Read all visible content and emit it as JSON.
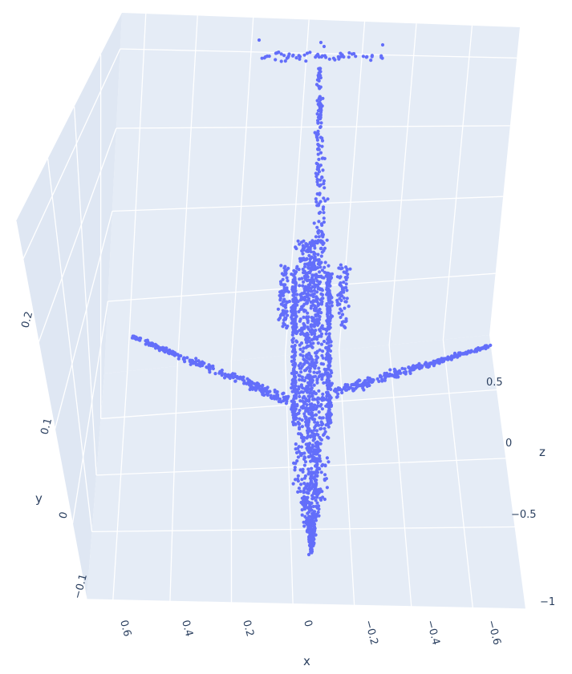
{
  "chart_data": {
    "type": "scatter",
    "mode": "3d",
    "description_shape": "point cloud of an airplane",
    "colors": {
      "background": "#e5ecf6",
      "grid": "#ffffff",
      "marker": "#636efa",
      "text": "#2a3f5f"
    },
    "axes": {
      "x": {
        "title": "x",
        "ticks": [
          "0.6",
          "0.4",
          "0.2",
          "0",
          "−0.2",
          "−0.4",
          "−0.6"
        ],
        "range": [
          0.7,
          -0.7
        ]
      },
      "y": {
        "title": "y",
        "ticks": [
          "−0.1",
          "0",
          "0.1",
          "0.2"
        ],
        "range": [
          -0.12,
          0.3
        ]
      },
      "z": {
        "title": "z",
        "ticks": [
          "−1",
          "−0.5",
          "0",
          "0.5"
        ],
        "range": [
          -1,
          0.8
        ]
      }
    },
    "series": [
      {
        "marker_color": "#636efa",
        "marker_size": 3,
        "point_count": 2048,
        "parts": [
          {
            "part": "fuselage",
            "x": [
              -0.1,
              0.05
            ],
            "y": [
              0.0,
              0.1
            ],
            "z": [
              -1.0,
              0.6
            ]
          },
          {
            "part": "left-wing",
            "x": [
              0.05,
              0.75
            ],
            "y": [
              0.08,
              0.12
            ],
            "z": [
              -0.2,
              0.1
            ]
          },
          {
            "part": "right-wing",
            "x": [
              -0.75,
              -0.05
            ],
            "y": [
              0.08,
              0.12
            ],
            "z": [
              -0.2,
              0.1
            ]
          },
          {
            "part": "tail-fin",
            "x": [
              -0.02,
              0.02
            ],
            "y": [
              0.1,
              0.25
            ],
            "z": [
              0.5,
              0.8
            ]
          },
          {
            "part": "stabilizer",
            "x": [
              -0.25,
              0.25
            ],
            "y": [
              0.2,
              0.25
            ],
            "z": [
              0.7,
              0.8
            ]
          }
        ]
      }
    ],
    "grid": true
  }
}
